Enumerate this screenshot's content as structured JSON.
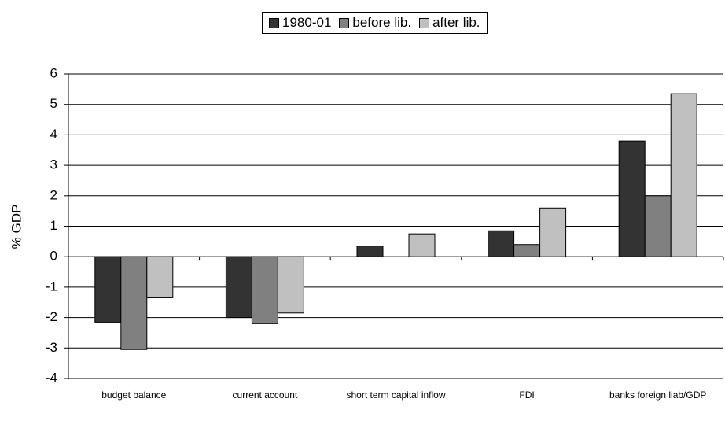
{
  "chart_data": {
    "type": "bar",
    "y_label": "% GDP",
    "categories": [
      "budget balance",
      "current account",
      "short term capital inflow",
      "FDI",
      "banks foreign liab/GDP"
    ],
    "series": [
      {
        "name": "1980-01",
        "color": "#333333",
        "values": [
          -2.15,
          -2.0,
          0.35,
          0.85,
          3.8
        ]
      },
      {
        "name": "before lib.",
        "color": "#808080",
        "values": [
          -3.05,
          -2.2,
          null,
          0.4,
          2.0
        ]
      },
      {
        "name": "after lib.",
        "color": "#c0c0c0",
        "values": [
          -1.35,
          -1.85,
          0.75,
          1.6,
          5.35
        ]
      }
    ],
    "ylim": [
      -4,
      6
    ],
    "yticks": [
      -4,
      -3,
      -2,
      -1,
      0,
      1,
      2,
      3,
      4,
      5,
      6
    ],
    "grid": true,
    "legend": "top"
  }
}
